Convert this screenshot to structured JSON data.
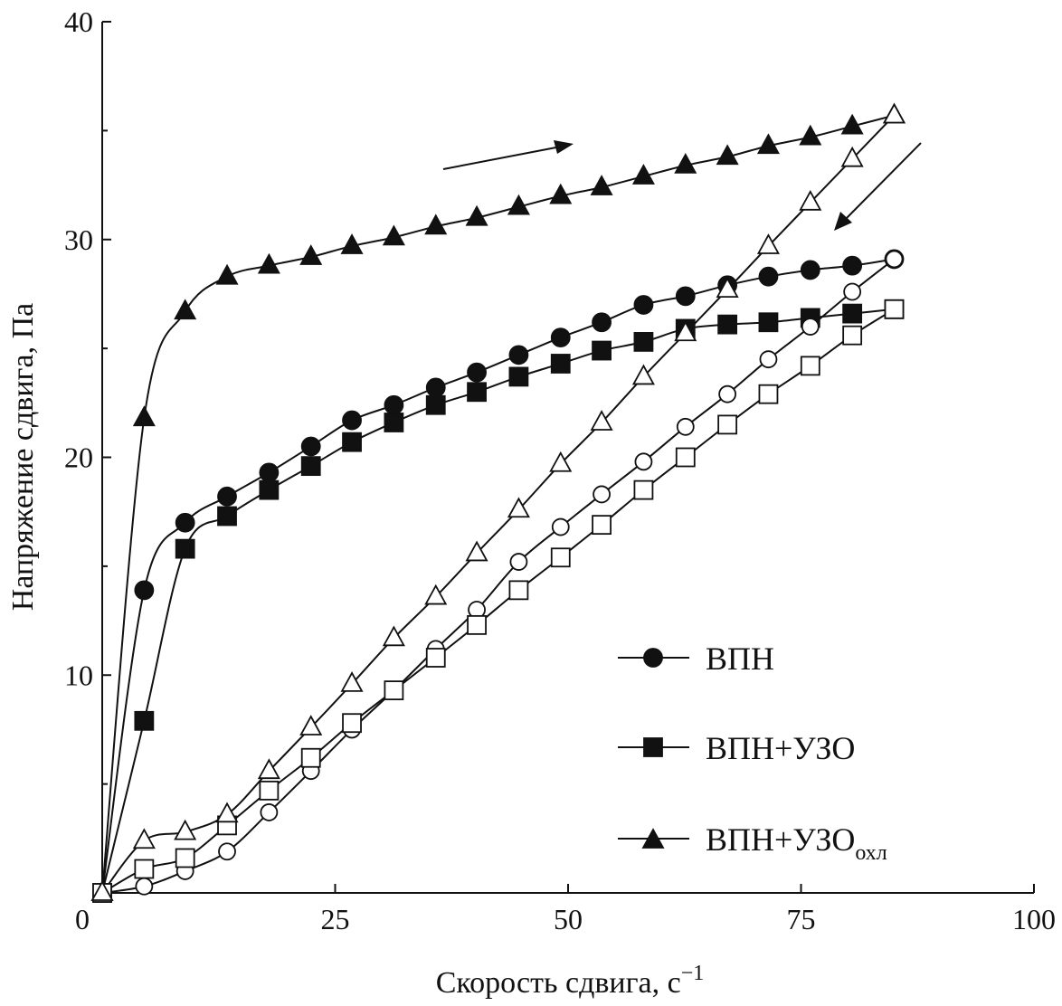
{
  "chart_data": {
    "type": "line",
    "title": "",
    "xlabel": "Скорость сдвига, с",
    "xlabel_superscript": "−1",
    "ylabel": "Напряжение сдвига, Па",
    "xlim": [
      0,
      100
    ],
    "ylim": [
      0,
      40
    ],
    "xticks": [
      "0",
      "25",
      "50",
      "75",
      "100"
    ],
    "yticks": [
      "10",
      "20",
      "30",
      "40"
    ],
    "grid": false,
    "legend_placement": "bottom-right",
    "x": [
      0,
      4.5,
      8.9,
      13.4,
      17.9,
      22.4,
      26.8,
      31.3,
      35.8,
      40.2,
      44.7,
      49.2,
      53.6,
      58.1,
      62.6,
      67.1,
      71.5,
      76.0,
      80.5,
      85.0
    ],
    "series": [
      {
        "name": "ВПН",
        "marker": "circle",
        "filled": true,
        "direction": "up",
        "values": [
          0,
          13.9,
          17.0,
          18.2,
          19.3,
          20.5,
          21.7,
          22.4,
          23.2,
          23.9,
          24.7,
          25.5,
          26.2,
          27.0,
          27.4,
          27.9,
          28.3,
          28.6,
          28.8,
          29.1
        ]
      },
      {
        "name": "ВПН+УЗО",
        "marker": "square",
        "filled": true,
        "direction": "up",
        "values": [
          0,
          7.9,
          15.8,
          17.3,
          18.5,
          19.6,
          20.7,
          21.6,
          22.4,
          23.0,
          23.7,
          24.3,
          24.9,
          25.3,
          25.9,
          26.1,
          26.2,
          26.4,
          26.6,
          26.8
        ]
      },
      {
        "name": "ВПН+УЗО",
        "name_subscript": "охл",
        "marker": "triangle",
        "filled": true,
        "direction": "up",
        "values": [
          0,
          21.8,
          26.7,
          28.3,
          28.8,
          29.2,
          29.7,
          30.1,
          30.6,
          31.0,
          31.5,
          32.0,
          32.4,
          32.9,
          33.4,
          33.8,
          34.3,
          34.7,
          35.2,
          35.7
        ]
      },
      {
        "marker": "circle",
        "filled": false,
        "direction": "down",
        "values": [
          0,
          0.3,
          1.0,
          1.9,
          3.7,
          5.6,
          7.5,
          9.3,
          11.2,
          13.0,
          15.2,
          16.8,
          18.3,
          19.8,
          21.4,
          22.9,
          24.5,
          26.0,
          27.6,
          29.1
        ]
      },
      {
        "marker": "square",
        "filled": false,
        "direction": "down",
        "values": [
          0,
          1.1,
          1.6,
          3.1,
          4.7,
          6.2,
          7.8,
          9.3,
          10.8,
          12.3,
          13.9,
          15.4,
          16.9,
          18.5,
          20.0,
          21.5,
          22.9,
          24.2,
          25.6,
          26.8
        ]
      },
      {
        "marker": "triangle",
        "filled": false,
        "direction": "down",
        "values": [
          0,
          2.4,
          2.8,
          3.6,
          5.6,
          7.6,
          9.6,
          11.7,
          13.6,
          15.6,
          17.6,
          19.7,
          21.6,
          23.7,
          25.7,
          27.7,
          29.7,
          31.7,
          33.7,
          35.7
        ]
      }
    ],
    "annotations": [
      "arrow-up-direction",
      "arrow-down-direction"
    ]
  }
}
